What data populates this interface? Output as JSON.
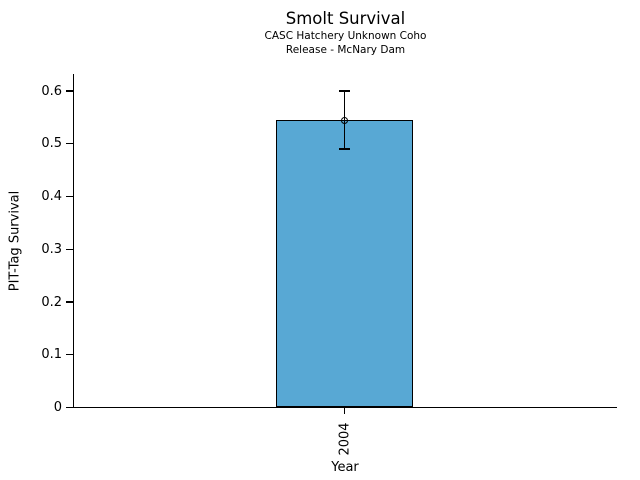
{
  "chart_data": {
    "type": "bar",
    "title": "Smolt Survival",
    "subtitle_lines": [
      "CASC Hatchery Unknown Coho",
      "Release - McNary Dam"
    ],
    "xlabel": "Year",
    "ylabel": "PIT-Tag Survival",
    "categories": [
      "2004"
    ],
    "values": [
      0.545
    ],
    "error_low": [
      0.49
    ],
    "error_high": [
      0.6
    ],
    "yticks": [
      0,
      0.1,
      0.2,
      0.3,
      0.4,
      0.5,
      0.6
    ],
    "ytick_labels": [
      "0",
      "0.1",
      "0.2",
      "0.3",
      "0.4",
      "0.5",
      "0.6"
    ],
    "ylim": [
      0,
      0.632
    ],
    "xtick_rotation": 90,
    "bar_color": "#58A8D4",
    "edge_color": "#000000",
    "background_color": "#ffffff",
    "legend": null,
    "grid": false,
    "error_marker": "open-circle"
  }
}
